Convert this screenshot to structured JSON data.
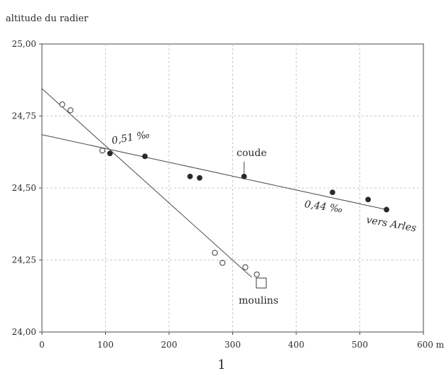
{
  "chart_data": {
    "type": "scatter",
    "title": "",
    "ylabel": "altitude du radier",
    "xlabel": "",
    "x_unit_label": "600 m",
    "figure_number": "1",
    "xlim": [
      0,
      600
    ],
    "ylim": [
      24.0,
      25.0
    ],
    "x_ticks": [
      0,
      100,
      200,
      300,
      400,
      500,
      600
    ],
    "x_tick_labels": [
      "0",
      "100",
      "200",
      "300",
      "400",
      "500",
      "600 m"
    ],
    "y_ticks": [
      24.0,
      24.25,
      24.5,
      24.75,
      25.0
    ],
    "y_tick_labels": [
      "24,00",
      "24,25",
      "24,50",
      "24,75",
      "25,00"
    ],
    "grid": true,
    "series": [
      {
        "marker": "open-circle",
        "points": [
          [
            32,
            24.79
          ],
          [
            45,
            24.77
          ],
          [
            95,
            24.63
          ],
          [
            272,
            24.275
          ],
          [
            284,
            24.24
          ],
          [
            320,
            24.225
          ],
          [
            338,
            24.2
          ]
        ]
      },
      {
        "marker": "filled-circle",
        "points": [
          [
            107,
            24.62
          ],
          [
            162,
            24.61
          ],
          [
            233,
            24.54
          ],
          [
            248,
            24.535
          ],
          [
            318,
            24.54
          ],
          [
            457,
            24.485
          ],
          [
            513,
            24.46
          ],
          [
            542,
            24.425
          ]
        ]
      }
    ],
    "lines": [
      {
        "from": [
          0,
          24.685
        ],
        "to": [
          542,
          24.425
        ]
      },
      {
        "from": [
          0,
          24.845
        ],
        "to": [
          330,
          24.19
        ]
      }
    ],
    "square_marker": {
      "x": 345,
      "y": 24.17
    },
    "annotations": [
      {
        "text": "0,51 ‰",
        "style": "italic"
      },
      {
        "text": "coude",
        "style": "normal"
      },
      {
        "text": "0,44 ‰",
        "style": "italic"
      },
      {
        "text": "vers Arles",
        "style": "italic"
      },
      {
        "text": "moulins",
        "style": "normal"
      }
    ]
  }
}
